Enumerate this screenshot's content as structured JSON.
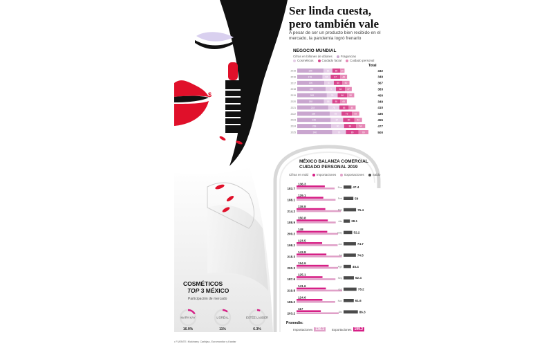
{
  "header": {
    "title_line1": "Ser linda cuesta,",
    "title_line2": "pero también vale",
    "subtitle": "A pesar de ser un producto bien recibido en el mercado, la pandemia logró frenarlo"
  },
  "negocio": {
    "title": "NEGOCIO MUNDIAL",
    "unit_note": "Cifras en billones de dólares",
    "legend": [
      "Fragancias",
      "Cosméticos",
      "Cuidado facial",
      "Cuidado personal"
    ],
    "total_label": "Total",
    "colors": [
      "#c9a6cf",
      "#e5cde7",
      "#d8458d",
      "#e688b6"
    ]
  },
  "balanza": {
    "title_line1": "MÉXICO BALANZA COMERCIAL",
    "title_line2": "CUIDADO PERSONAL 2019",
    "unit_note": "Cifras en mdd",
    "legend": [
      "Importaciones",
      "Exportaciones",
      "Saldo"
    ],
    "colors": {
      "importaciones": "#d61f86",
      "exportaciones": "#e0a0c8",
      "saldo": "#4a4a4a"
    }
  },
  "cosmeticos": {
    "title_line1": "COSMÉTICOS",
    "title_top": "TOP",
    "title_rest": "3 MÉXICO",
    "subtitle": "Participación de mercado",
    "brands": [
      {
        "name": "MARY KAY",
        "share": 16.9,
        "share_label": "16.9%"
      },
      {
        "name": "L'ORÉAL",
        "share": 11,
        "share_label": "11%"
      },
      {
        "name": "ESTÉE LAUDER",
        "share": 6.3,
        "share_label": "6.3%"
      }
    ]
  },
  "promedio": {
    "label": "Promedio:",
    "importaciones_label": "Importaciones",
    "importaciones_value": "136.1",
    "exportaciones_label": "Exportaciones",
    "exportaciones_value": "199.2"
  },
  "source": "• FUENTE: Mckinsey, Caribjao, Euromonitor y Kantar",
  "chart_data": [
    {
      "type": "bar",
      "title": "NEGOCIO MUNDIAL",
      "stacked": true,
      "orientation": "horizontal",
      "categories": [
        "2015",
        "2016",
        "2017",
        "2018",
        "2019",
        "2020",
        "2021",
        "2022",
        "2023",
        "2024",
        "2025"
      ],
      "series": [
        {
          "name": "Fragancias",
          "values": [
            185,
            178,
            190,
            200,
            208,
            188,
            218,
            228,
            235,
            239,
            246
          ]
        },
        {
          "name": "Cosméticos",
          "values": [
            62,
            57,
            67,
            72,
            76,
            58,
            78,
            83,
            87,
            90,
            96
          ]
        },
        {
          "name": "Cuidado facial",
          "values": [
            55,
            67,
            60,
            64,
            66,
            55,
            65,
            73,
            80,
            84,
            89
          ]
        },
        {
          "name": "Cuidado personal",
          "values": [
            30,
            48,
            50,
            47,
            50,
            48,
            49,
            52,
            53,
            64,
            69
          ]
        }
      ],
      "totals": [
        332,
        349,
        367,
        383,
        400,
        349,
        410,
        436,
        455,
        477,
        500
      ],
      "totals_labels": [
        "332",
        "349",
        "367",
        "383",
        "400",
        "349",
        "410",
        "436",
        "455",
        "477",
        "500"
      ]
    },
    {
      "type": "bar",
      "title": "MÉXICO BALANZA COMERCIAL CUIDADO PERSONAL 2019",
      "orientation": "horizontal",
      "categories": [
        "Ene",
        "Feb",
        "Mar",
        "Abr",
        "May",
        "Jun",
        "Jul",
        "Ago",
        "Sep",
        "Oct",
        "Nov",
        "Dic"
      ],
      "series": [
        {
          "name": "Importaciones",
          "values": [
            136.3,
            129.1,
            138.8,
            150.8,
            148,
            123.5,
            143.8,
            154.9,
            125.1,
            141.6,
            124.6,
            117
          ]
        },
        {
          "name": "Exportaciones",
          "values": [
            183.7,
            188.1,
            214.2,
            188.9,
            200.2,
            198.2,
            218.3,
            200.3,
            187.6,
            219.8,
            186.2,
            203.2
          ]
        },
        {
          "name": "Saldo",
          "values": [
            47.4,
            59,
            75.4,
            38.1,
            52.2,
            74.7,
            74.5,
            45.4,
            62.4,
            78.2,
            61.6,
            86.3
          ]
        }
      ],
      "labels": {
        "importaciones": [
          "136.3",
          "129.1",
          "138.8",
          "150.8",
          "148",
          "123.5",
          "143.8",
          "154.9",
          "125.1",
          "141.6",
          "124.6",
          "117"
        ],
        "exportaciones": [
          "183.7",
          "188.1",
          "214.2",
          "188.9",
          "200.2",
          "198.2",
          "218.3",
          "200.3",
          "187.6",
          "219.8",
          "186.2",
          "203.2"
        ],
        "saldo": [
          "47.4",
          "59",
          "75.4",
          "38.1",
          "52.2",
          "74.7",
          "74.5",
          "45.4",
          "62.4",
          "78.2",
          "61.6",
          "86.3"
        ]
      }
    },
    {
      "type": "pie",
      "title": "COSMÉTICOS TOP 3 MÉXICO",
      "categories": [
        "MARY KAY",
        "L'ORÉAL",
        "ESTÉE LAUDER"
      ],
      "values": [
        16.9,
        11,
        6.3
      ]
    }
  ]
}
